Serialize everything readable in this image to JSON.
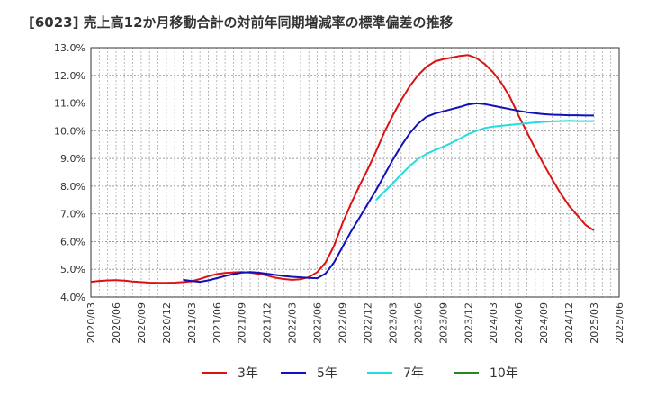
{
  "chart_data": {
    "type": "line",
    "title": "[6023]  売上高12か月移動合計の対前年同期増減率の標準偏差の推移",
    "xlabel": "",
    "ylabel": "",
    "ylim": [
      4.0,
      13.0
    ],
    "y_ticks": [
      "4.0%",
      "5.0%",
      "6.0%",
      "7.0%",
      "8.0%",
      "9.0%",
      "10.0%",
      "11.0%",
      "12.0%",
      "13.0%"
    ],
    "x_ticks": [
      "2020/03",
      "2020/06",
      "2020/09",
      "2020/12",
      "2021/03",
      "2021/06",
      "2021/09",
      "2021/12",
      "2022/03",
      "2022/06",
      "2022/09",
      "2022/12",
      "2023/03",
      "2023/06",
      "2023/09",
      "2023/12",
      "2024/03",
      "2024/06",
      "2024/09",
      "2024/12",
      "2025/03",
      "2025/06"
    ],
    "grid": true,
    "legend_position": "bottom",
    "series": [
      {
        "name": "3年",
        "color": "#dd1111",
        "x": [
          "2020/03",
          "2020/04",
          "2020/05",
          "2020/06",
          "2020/07",
          "2020/08",
          "2020/09",
          "2020/10",
          "2020/11",
          "2020/12",
          "2021/01",
          "2021/02",
          "2021/03",
          "2021/04",
          "2021/05",
          "2021/06",
          "2021/07",
          "2021/08",
          "2021/09",
          "2021/10",
          "2021/11",
          "2021/12",
          "2022/01",
          "2022/02",
          "2022/03",
          "2022/04",
          "2022/05",
          "2022/06",
          "2022/07",
          "2022/08",
          "2022/09",
          "2022/10",
          "2022/11",
          "2022/12",
          "2023/01",
          "2023/02",
          "2023/03",
          "2023/04",
          "2023/05",
          "2023/06",
          "2023/07",
          "2023/08",
          "2023/09",
          "2023/10",
          "2023/11",
          "2023/12",
          "2024/01",
          "2024/02",
          "2024/03",
          "2024/04",
          "2024/05",
          "2024/06",
          "2024/07",
          "2024/08",
          "2024/09",
          "2024/10",
          "2024/11",
          "2024/12",
          "2025/01",
          "2025/02",
          "2025/03"
        ],
        "values": [
          4.55,
          4.58,
          4.6,
          4.61,
          4.59,
          4.56,
          4.54,
          4.52,
          4.51,
          4.51,
          4.52,
          4.54,
          4.57,
          4.65,
          4.75,
          4.83,
          4.87,
          4.89,
          4.9,
          4.88,
          4.84,
          4.78,
          4.7,
          4.65,
          4.62,
          4.64,
          4.72,
          4.9,
          5.25,
          5.85,
          6.65,
          7.35,
          8.0,
          8.6,
          9.25,
          9.95,
          10.55,
          11.1,
          11.6,
          12.0,
          12.3,
          12.5,
          12.58,
          12.64,
          12.7,
          12.73,
          12.62,
          12.4,
          12.1,
          11.7,
          11.2,
          10.55,
          9.95,
          9.35,
          8.8,
          8.25,
          7.75,
          7.3,
          6.95,
          6.6,
          6.4
        ]
      },
      {
        "name": "5年",
        "color": "#1111bb",
        "x": [
          "2021/02",
          "2021/03",
          "2021/04",
          "2021/05",
          "2021/06",
          "2021/07",
          "2021/08",
          "2021/09",
          "2021/10",
          "2021/11",
          "2021/12",
          "2022/01",
          "2022/02",
          "2022/03",
          "2022/04",
          "2022/05",
          "2022/06",
          "2022/07",
          "2022/08",
          "2022/09",
          "2022/10",
          "2022/11",
          "2022/12",
          "2023/01",
          "2023/02",
          "2023/03",
          "2023/04",
          "2023/05",
          "2023/06",
          "2023/07",
          "2023/08",
          "2023/09",
          "2023/10",
          "2023/11",
          "2023/12",
          "2024/01",
          "2024/02",
          "2024/03",
          "2024/04",
          "2024/05",
          "2024/06",
          "2024/07",
          "2024/08",
          "2024/09",
          "2024/10",
          "2024/11",
          "2024/12",
          "2025/01",
          "2025/02",
          "2025/03"
        ],
        "values": [
          4.62,
          4.58,
          4.55,
          4.6,
          4.68,
          4.76,
          4.83,
          4.88,
          4.9,
          4.88,
          4.84,
          4.8,
          4.76,
          4.73,
          4.71,
          4.69,
          4.68,
          4.85,
          5.25,
          5.8,
          6.35,
          6.85,
          7.35,
          7.85,
          8.4,
          8.95,
          9.45,
          9.9,
          10.25,
          10.5,
          10.62,
          10.7,
          10.78,
          10.86,
          10.95,
          10.99,
          10.96,
          10.9,
          10.84,
          10.78,
          10.72,
          10.67,
          10.63,
          10.6,
          10.58,
          10.57,
          10.56,
          10.56,
          10.55,
          10.55
        ]
      },
      {
        "name": "7年",
        "color": "#22dddd",
        "x": [
          "2023/01",
          "2023/02",
          "2023/03",
          "2023/04",
          "2023/05",
          "2023/06",
          "2023/07",
          "2023/08",
          "2023/09",
          "2023/10",
          "2023/11",
          "2023/12",
          "2024/01",
          "2024/02",
          "2024/03",
          "2024/04",
          "2024/05",
          "2024/06",
          "2024/07",
          "2024/08",
          "2024/09",
          "2024/10",
          "2024/11",
          "2024/12",
          "2025/01",
          "2025/02",
          "2025/03"
        ],
        "values": [
          7.5,
          7.8,
          8.1,
          8.42,
          8.72,
          8.98,
          9.16,
          9.3,
          9.42,
          9.56,
          9.72,
          9.88,
          10.0,
          10.1,
          10.15,
          10.18,
          10.21,
          10.24,
          10.27,
          10.3,
          10.32,
          10.34,
          10.35,
          10.36,
          10.35,
          10.35,
          10.35
        ]
      },
      {
        "name": "10年",
        "color": "#228822",
        "x": [],
        "values": []
      }
    ]
  }
}
